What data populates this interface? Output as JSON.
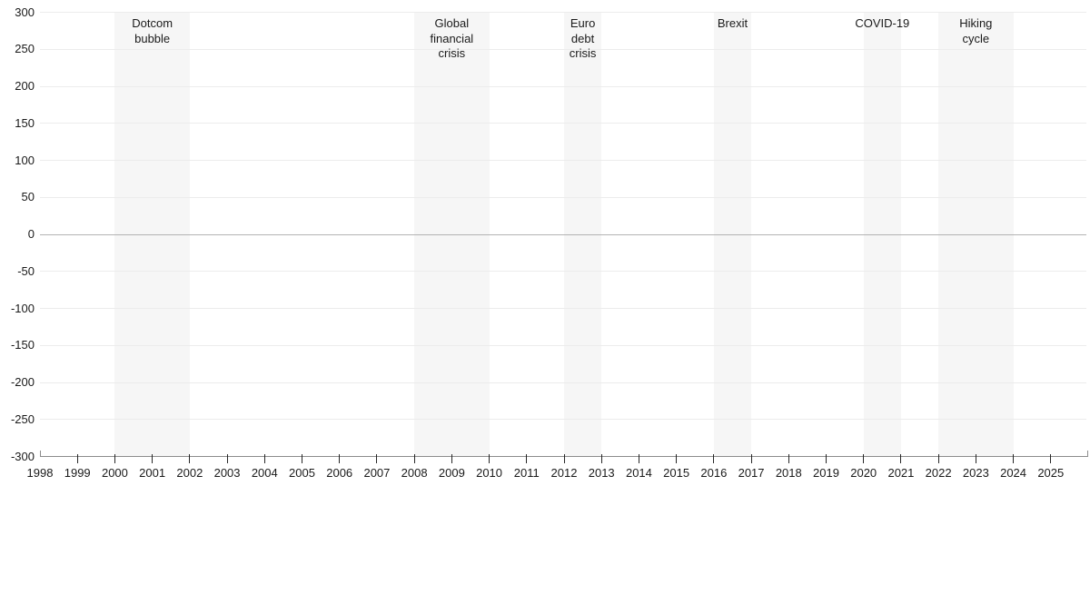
{
  "chart_data": {
    "type": "line",
    "title": "",
    "series": [],
    "grid": true,
    "legend": null,
    "x_axis": {
      "min": 1998,
      "max": 2026,
      "tick_years": [
        1998,
        1999,
        2000,
        2001,
        2002,
        2003,
        2004,
        2005,
        2006,
        2007,
        2008,
        2009,
        2010,
        2011,
        2012,
        2013,
        2014,
        2015,
        2016,
        2017,
        2018,
        2019,
        2020,
        2021,
        2022,
        2023,
        2024,
        2025
      ]
    },
    "y_axis": {
      "min": -300,
      "max": 300,
      "step": 50,
      "ticks": [
        300,
        250,
        200,
        150,
        100,
        50,
        0,
        -50,
        -100,
        -150,
        -200,
        -250,
        -300
      ]
    },
    "zero_line": true,
    "event_bands": [
      {
        "id": "dotcom-bubble",
        "label": "Dotcom\nbubble",
        "start": 2000,
        "end": 2002
      },
      {
        "id": "global-financial-crisis",
        "label": "Global\nfinancial\ncrisis",
        "start": 2008,
        "end": 2010
      },
      {
        "id": "euro-debt-crisis",
        "label": "Euro\ndebt\ncrisis",
        "start": 2012,
        "end": 2013
      },
      {
        "id": "brexit",
        "label": "Brexit",
        "start": 2016,
        "end": 2017
      },
      {
        "id": "covid-19",
        "label": "COVID-19",
        "start": 2020,
        "end": 2021
      },
      {
        "id": "hiking-cycle",
        "label": "Hiking\ncycle",
        "start": 2022,
        "end": 2024
      }
    ],
    "colors": {
      "background": "#ffffff",
      "band": "#f6f6f6",
      "gridline": "#ececec",
      "zero_line": "#b3b3b3",
      "axis_line": "#8c8c8c",
      "tick": "#262626",
      "text": "#1a1a1a"
    }
  }
}
